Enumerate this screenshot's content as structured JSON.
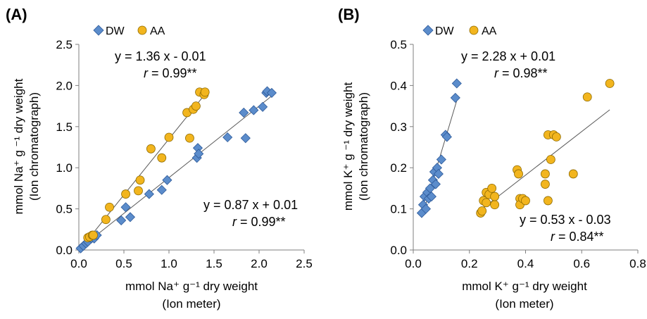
{
  "chart_data": [
    {
      "panel": "(A)",
      "type": "scatter",
      "title": "",
      "xlabel": "mmol Na⁺ g⁻¹ dry weight",
      "xlabel_sub": "(Ion meter)",
      "ylabel": "mmol Na⁺ g ⁻¹ dry weight",
      "ylabel_sub": "(Ion chromatograph)",
      "xlim": [
        0,
        2.5
      ],
      "ylim": [
        0,
        2.5
      ],
      "xticks": [
        "0.0",
        "0.5",
        "1.0",
        "1.5",
        "2.0",
        "2.5"
      ],
      "yticks": [
        "0.0",
        "0.5",
        "1.0",
        "1.5",
        "2.0",
        "2.5"
      ],
      "grid": false,
      "legend_position": "top-left",
      "series": [
        {
          "name": "DW",
          "marker": "diamond",
          "color": "#5B8CCB",
          "x": [
            0.02,
            0.05,
            0.08,
            0.1,
            0.14,
            0.17,
            0.2,
            0.47,
            0.52,
            0.57,
            0.78,
            0.92,
            0.98,
            1.31,
            1.32,
            1.33,
            1.65,
            1.83,
            1.85,
            1.94,
            2.04,
            2.08,
            2.09,
            2.14
          ],
          "y": [
            0.02,
            0.05,
            0.08,
            0.1,
            0.14,
            0.14,
            0.18,
            0.36,
            0.52,
            0.4,
            0.68,
            0.73,
            0.85,
            1.12,
            1.24,
            1.17,
            1.37,
            1.67,
            1.36,
            1.7,
            1.74,
            1.91,
            1.93,
            1.91
          ],
          "fit": {
            "slope": 0.87,
            "intercept": 0.01,
            "equation": "y = 0.87 x + 0.01",
            "r": "0.99**"
          }
        },
        {
          "name": "AA",
          "marker": "circle",
          "color": "#F2B51E",
          "x": [
            0.1,
            0.12,
            0.15,
            0.16,
            0.3,
            0.34,
            0.52,
            0.66,
            0.68,
            0.8,
            0.92,
            1.0,
            1.2,
            1.23,
            1.27,
            1.3,
            1.34,
            1.39,
            1.4
          ],
          "y": [
            0.15,
            0.16,
            0.18,
            0.18,
            0.37,
            0.52,
            0.68,
            0.72,
            0.85,
            1.23,
            1.12,
            1.37,
            1.67,
            1.36,
            1.71,
            1.75,
            1.92,
            1.89,
            1.92
          ],
          "fit": {
            "slope": 1.36,
            "intercept": -0.01,
            "equation": "y = 1.36 x - 0.01",
            "r": "0.99**"
          }
        }
      ]
    },
    {
      "panel": "(B)",
      "type": "scatter",
      "title": "",
      "xlabel": "mmol K⁺ g⁻¹ dry weight",
      "xlabel_sub": "(Ion meter)",
      "ylabel": "mmol K⁺ g ⁻¹ dry weight",
      "ylabel_sub": "(Ion chromatograph)",
      "xlim": [
        0,
        0.8
      ],
      "ylim": [
        0,
        0.5
      ],
      "xticks": [
        "0.0",
        "0.2",
        "0.4",
        "0.6",
        "0.8"
      ],
      "yticks": [
        "0.0",
        "0.1",
        "0.2",
        "0.3",
        "0.4",
        "0.5"
      ],
      "grid": false,
      "legend_position": "top-left",
      "series": [
        {
          "name": "DW",
          "marker": "diamond",
          "color": "#5B8CCB",
          "x": [
            0.03,
            0.035,
            0.04,
            0.045,
            0.05,
            0.055,
            0.06,
            0.065,
            0.07,
            0.075,
            0.08,
            0.085,
            0.09,
            0.1,
            0.115,
            0.12,
            0.15,
            0.155
          ],
          "y": [
            0.09,
            0.11,
            0.13,
            0.1,
            0.14,
            0.125,
            0.15,
            0.13,
            0.17,
            0.19,
            0.16,
            0.2,
            0.185,
            0.22,
            0.28,
            0.275,
            0.37,
            0.405
          ],
          "fit": {
            "slope": 2.28,
            "intercept": 0.01,
            "equation": "y = 2.28 x + 0.01",
            "r": "0.98**"
          }
        },
        {
          "name": "AA",
          "marker": "circle",
          "color": "#F2B51E",
          "x": [
            0.24,
            0.245,
            0.25,
            0.26,
            0.26,
            0.27,
            0.28,
            0.29,
            0.29,
            0.37,
            0.375,
            0.38,
            0.38,
            0.39,
            0.4,
            0.47,
            0.47,
            0.48,
            0.48,
            0.49,
            0.5,
            0.51,
            0.57,
            0.62,
            0.7
          ],
          "y": [
            0.09,
            0.095,
            0.12,
            0.14,
            0.115,
            0.135,
            0.15,
            0.11,
            0.13,
            0.195,
            0.185,
            0.125,
            0.11,
            0.125,
            0.12,
            0.185,
            0.16,
            0.12,
            0.28,
            0.22,
            0.28,
            0.275,
            0.185,
            0.372,
            0.405
          ],
          "fit": {
            "slope": 0.53,
            "intercept": -0.03,
            "equation": "y = 0.53 x - 0.03",
            "r": "0.84**"
          }
        }
      ]
    }
  ]
}
